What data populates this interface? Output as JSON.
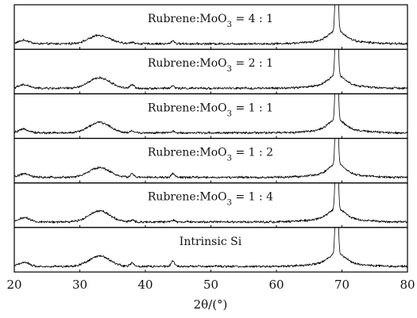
{
  "chart_data": {
    "type": "line",
    "xlabel": "2θ/(°)",
    "xlim": [
      20,
      80
    ],
    "x_ticks": [
      20,
      30,
      40,
      50,
      60,
      70,
      80
    ],
    "y_ticks_shown": false,
    "grid": false,
    "legend": "none",
    "series": [
      {
        "name": "Rubrene:MoO3 = 4:1",
        "peaks": [
          {
            "x": 21.5,
            "height": 0.1,
            "width": 0.8
          },
          {
            "x": 33.0,
            "height": 0.24,
            "width": 1.6
          },
          {
            "x": 38.0,
            "height": 0.05,
            "width": 0.3
          },
          {
            "x": 44.2,
            "height": 0.09,
            "width": 0.25
          },
          {
            "x": 69.2,
            "height": 1.0,
            "width": 0.5
          }
        ]
      },
      {
        "name": "Rubrene:MoO3 = 2:1",
        "peaks": [
          {
            "x": 21.5,
            "height": 0.1,
            "width": 0.8
          },
          {
            "x": 33.0,
            "height": 0.3,
            "width": 1.6
          },
          {
            "x": 38.0,
            "height": 0.1,
            "width": 0.3
          },
          {
            "x": 44.2,
            "height": 0.07,
            "width": 0.25
          },
          {
            "x": 69.2,
            "height": 1.0,
            "width": 0.5
          }
        ]
      },
      {
        "name": "Rubrene:MoO3 = 1:1",
        "peaks": [
          {
            "x": 21.5,
            "height": 0.1,
            "width": 0.8
          },
          {
            "x": 33.0,
            "height": 0.3,
            "width": 1.6
          },
          {
            "x": 38.0,
            "height": 0.05,
            "width": 0.3
          },
          {
            "x": 44.2,
            "height": 0.04,
            "width": 0.25
          },
          {
            "x": 69.2,
            "height": 1.0,
            "width": 0.5
          }
        ]
      },
      {
        "name": "Rubrene:MoO3 = 1:2",
        "peaks": [
          {
            "x": 21.5,
            "height": 0.1,
            "width": 0.8
          },
          {
            "x": 33.0,
            "height": 0.28,
            "width": 1.6
          },
          {
            "x": 38.0,
            "height": 0.1,
            "width": 0.3
          },
          {
            "x": 44.2,
            "height": 0.12,
            "width": 0.25
          },
          {
            "x": 69.2,
            "height": 1.0,
            "width": 0.5
          }
        ]
      },
      {
        "name": "Rubrene:MoO3 = 1:4",
        "peaks": [
          {
            "x": 21.5,
            "height": 0.12,
            "width": 0.8
          },
          {
            "x": 33.0,
            "height": 0.32,
            "width": 1.6
          },
          {
            "x": 38.0,
            "height": 0.06,
            "width": 0.3
          },
          {
            "x": 44.2,
            "height": 0.05,
            "width": 0.25
          },
          {
            "x": 69.2,
            "height": 1.0,
            "width": 0.5
          }
        ]
      },
      {
        "name": "Intrinsic Si",
        "peaks": [
          {
            "x": 21.5,
            "height": 0.12,
            "width": 0.8
          },
          {
            "x": 33.0,
            "height": 0.3,
            "width": 1.6
          },
          {
            "x": 38.0,
            "height": 0.1,
            "width": 0.3
          },
          {
            "x": 44.2,
            "height": 0.16,
            "width": 0.25
          },
          {
            "x": 69.2,
            "height": 1.0,
            "width": 0.5
          }
        ]
      }
    ]
  },
  "panels": {
    "labels": [
      {
        "prefix": "Rubrene:MoO",
        "sub": "3",
        "suffix": " = 4 : 1"
      },
      {
        "prefix": "Rubrene:MoO",
        "sub": "3",
        "suffix": " = 2 : 1"
      },
      {
        "prefix": "Rubrene:MoO",
        "sub": "3",
        "suffix": " = 1 : 1"
      },
      {
        "prefix": "Rubrene:MoO",
        "sub": "3",
        "suffix": " = 1 : 2"
      },
      {
        "prefix": "Rubrene:MoO",
        "sub": "3",
        "suffix": " = 1 : 4"
      },
      {
        "prefix": "Intrinsic Si",
        "sub": "",
        "suffix": ""
      }
    ]
  }
}
